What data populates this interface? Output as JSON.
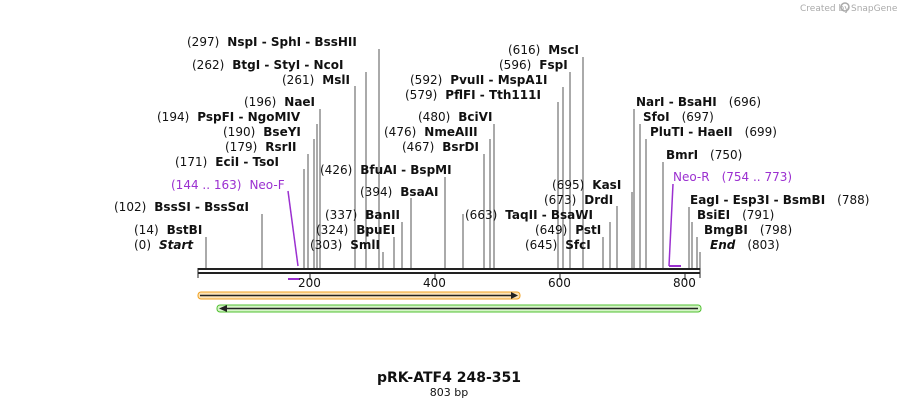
{
  "credit": {
    "text": "Created by",
    "brand": "SnapGene"
  },
  "plasmid": {
    "name": "pRK-ATF4 248-351",
    "length": "803 bp"
  },
  "ruler": {
    "ticks": [
      "200",
      "400",
      "600",
      "800"
    ]
  },
  "colors": {
    "feature1": "#f0a020",
    "feature2": "#50c030",
    "primer": "#9b30d0"
  },
  "labels": [
    {
      "num": "(297)",
      "text": "NspI  -  SphI   -  BssHII"
    },
    {
      "num": "(262)",
      "text": "BtgI  -  StyI  -  NcoI"
    },
    {
      "num": "(261)",
      "text": "MslI"
    },
    {
      "num": "(196)",
      "text": "NaeI"
    },
    {
      "num": "(194)",
      "text": "PspFI  -  NgoMIV"
    },
    {
      "num": "(190)",
      "text": "BseYI"
    },
    {
      "num": "(179)",
      "text": "RsrII"
    },
    {
      "num": "(171)",
      "text": "EciI  -  TsoI"
    },
    {
      "num": "(102)",
      "text": "BssSI  -  BssSαI"
    },
    {
      "num": "(14)",
      "text": "BstBI"
    },
    {
      "num": "(0)",
      "text": "Start"
    },
    {
      "num": "(426)",
      "text": "BfuAI  -  BspMI"
    },
    {
      "num": "(394)",
      "text": "BsaAI"
    },
    {
      "num": "(337)",
      "text": "BanII"
    },
    {
      "num": "(324)",
      "text": "BpuEI"
    },
    {
      "num": "(303)",
      "text": "SmlI"
    },
    {
      "num": "(616)",
      "text": "MscI"
    },
    {
      "num": "(596)",
      "text": "FspI"
    },
    {
      "num": "(592)",
      "text": "PvuII  -  MspA1I"
    },
    {
      "num": "(579)",
      "text": "PflFI  -  Tth111I"
    },
    {
      "num": "(480)",
      "text": "BciVI"
    },
    {
      "num": "(476)",
      "text": "NmeAIII"
    },
    {
      "num": "(467)",
      "text": "BsrDI"
    },
    {
      "num": "(695)",
      "text": "KasI"
    },
    {
      "num": "(673)",
      "text": "DrdI"
    },
    {
      "num": "(663)",
      "text": "TaqII  -  BsaWI"
    },
    {
      "num": "(649)",
      "text": "PstI"
    },
    {
      "num": "(645)",
      "text": "SfcI"
    },
    {
      "num": "(696)",
      "text": "NarI  -  BsaHI"
    },
    {
      "num": "(697)",
      "text": "SfoI"
    },
    {
      "num": "(699)",
      "text": "PluTI  -  HaeII"
    },
    {
      "num": "(750)",
      "text": "BmrI"
    },
    {
      "num": "(788)",
      "text": "EagI  -  Esp3I  -  BsmBI"
    },
    {
      "num": "(791)",
      "text": "BsiEI"
    },
    {
      "num": "(798)",
      "text": "BmgBI"
    },
    {
      "num": "(803)",
      "text": "End"
    }
  ],
  "primers": [
    {
      "name": "Neo-F",
      "range": "(144 .. 163)"
    },
    {
      "name": "Neo-R",
      "range": "(754 .. 773)"
    }
  ]
}
